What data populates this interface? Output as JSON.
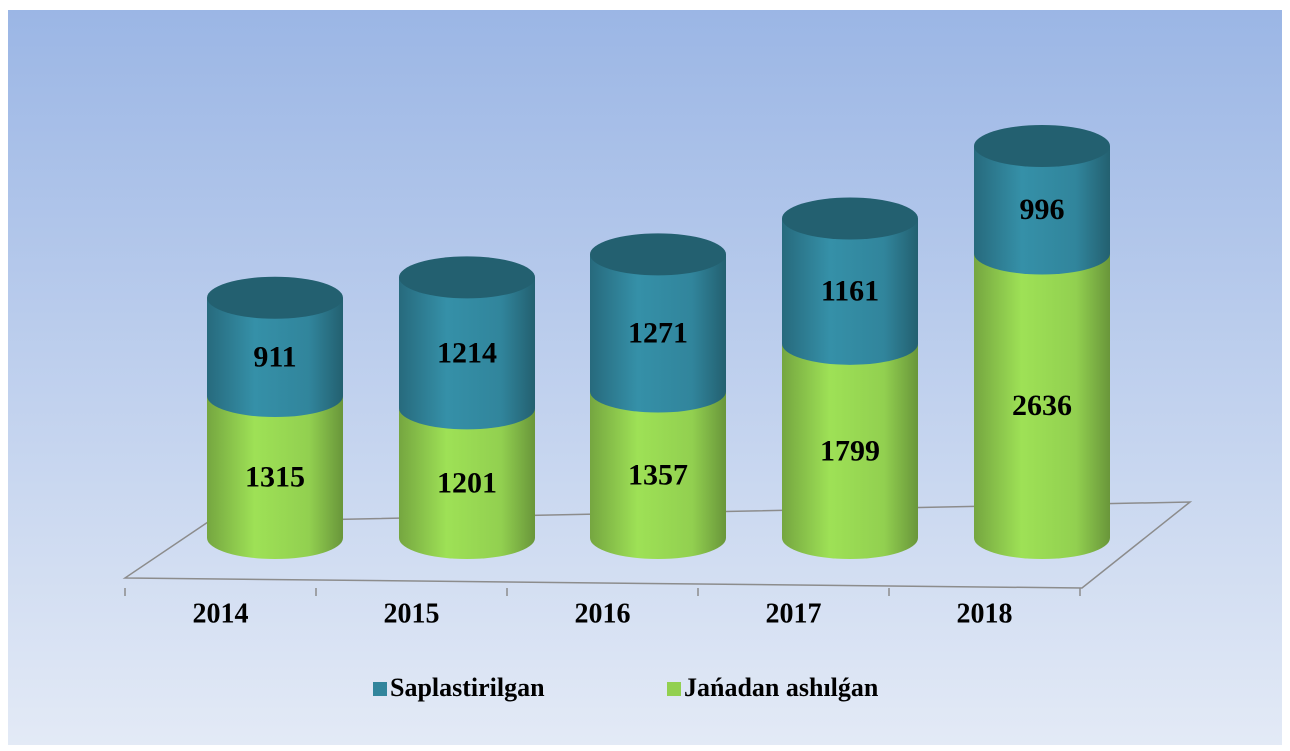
{
  "chart_data": {
    "type": "cylinder-stacked",
    "categories": [
      "2014",
      "2015",
      "2016",
      "2017",
      "2018"
    ],
    "series": [
      {
        "name": "Jańadan ashılǵan",
        "color": "#92d050",
        "values": [
          1315,
          1201,
          1357,
          1799,
          2636
        ]
      },
      {
        "name": "Saplastirilgan",
        "color": "#31859c",
        "values": [
          911,
          1214,
          1271,
          1161,
          996
        ]
      }
    ],
    "legend_order": [
      "Saplastirilgan",
      "Jańadan ashılǵan"
    ]
  }
}
